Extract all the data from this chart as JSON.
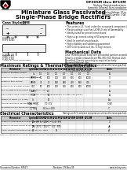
{
  "title_part": "DF005M thru DF10M",
  "company": "Vishay Semiconductors",
  "company_sub": "formerly General Semiconductor",
  "main_title_1": "Miniature Glass Passivated",
  "main_title_2": "Single-Phase Bridge Rectifiers",
  "housing": "Housing Voltage: 50 to 1000V",
  "forward": "Forward Current: 1.0A",
  "case_style": "Case Style DFB",
  "features_title": "Features",
  "features": [
    "This series is UL listed under the recognized component index, file number E54214",
    "Plastic package used has UL94V-0 rate of flammability",
    "Ideally suited for printed circuit board",
    "High surge current rating of 50 amperes peak",
    "Ideal for printed circuit boards",
    "High reliability and soldering guaranteed",
    "200°C/10 seconds at 4 lbs. (2.5kg) tension"
  ],
  "mech_title": "Mechanical Data",
  "mech_lines": [
    "Case: Molded plastic body over passivated junction assembly.",
    "Polarity symbols embossed per MIL-STD-750, Method 2026",
    "Mounting: Chassis mounting as required on body",
    "Mounting Material: Any",
    "Weight: 0.810 oz., 0.6 gm",
    "Packaging codes/options:",
    "TR (52 pcs per bulk tape)"
  ],
  "max_title": "Maximum Ratings & Thermal Characteristics",
  "max_note": "Ratings at 25°C ambient temperature unless otherwise specified",
  "col_headers": [
    "Parameter",
    "Symbol",
    "DF005M",
    "DF01M",
    "DF02M",
    "DF04M",
    "DF06M",
    "DF08M",
    "DF10M",
    "Units"
  ],
  "max_rows": [
    [
      "Maximum Rectified Current",
      "Io",
      "1.0",
      "1.0",
      "1.0",
      "1.0",
      "1.0",
      "1.0",
      "1.0",
      "A"
    ],
    [
      "Maximum repetitive peak reverse voltage",
      "VRRM",
      "50",
      "100",
      "200",
      "400",
      "600",
      "800",
      "1000",
      "V"
    ],
    [
      "Maximum RMS voltage",
      "VRMS",
      "35",
      "70",
      "140",
      "280",
      "420",
      "560",
      "700",
      "V"
    ],
    [
      "Maximum DC blocking voltage",
      "VDC",
      "50",
      "100",
      "200",
      "400",
      "600",
      "800",
      "1000",
      "V"
    ],
    [
      "Max. average forward output current at TA=40°C",
      "Io(AV)",
      "",
      "1.0",
      "",
      "",
      "",
      "",
      "",
      "A"
    ],
    [
      "Peak forward surge current single phase, half sine superimposed on rated load (JEDEC)",
      "IFSM",
      "",
      "50",
      "",
      "",
      "",
      "",
      "",
      "A"
    ],
    [
      "Ratings for fusing (t < 8.3ms)",
      "I²t",
      "",
      "10",
      "",
      "",
      "",
      "",
      "",
      "A²s"
    ],
    [
      "Thermal resistance (see fig.1) per Ω",
      "RθJA / RθJC",
      "",
      "70 / 15",
      "",
      "",
      "",
      "",
      "",
      "°C/W"
    ],
    [
      "Operating junction temperature range",
      "TJ, Tstg",
      "",
      "-55 to +150",
      "",
      "",
      "",
      "",
      "",
      "°C"
    ]
  ],
  "elec_title": "Electrical Characteristics",
  "elec_note": "Ratings at 25°C ambient temperature unless otherwise specified",
  "elec_rows": [
    [
      "Maximum instantaneous forward voltage drop (per leg) at 1.0A",
      "VF",
      "TJ = 25°C / 125°C",
      "",
      "1.1 / 0.9",
      "",
      "",
      "",
      "",
      "V"
    ],
    [
      "Maximum reverse current at rated DC blocking voltage per leg",
      "IR",
      "TJ = 25°C / 125°C",
      "",
      "5.0 / 500",
      "",
      "",
      "",
      "",
      "μA"
    ],
    [
      "Typical junction capacitance per leg at 4.0V, 1MHz",
      "CJ",
      "",
      "",
      "15",
      "",
      "",
      "",
      "",
      "pF"
    ]
  ],
  "note": "Note: (1) Specifications shown apply to common cathode and common anode terminals in DF25 with DF1 thru DF10M series cases.",
  "footer_left": "Document Number: 88527",
  "footer_right": "www.vishay.com",
  "footer_center": "Revision: 09-Nov-09",
  "bg": "#ffffff",
  "gray_header": "#c8c8c8",
  "gray_row": "#e8e8e8",
  "white_row": "#ffffff",
  "border": "#555555"
}
